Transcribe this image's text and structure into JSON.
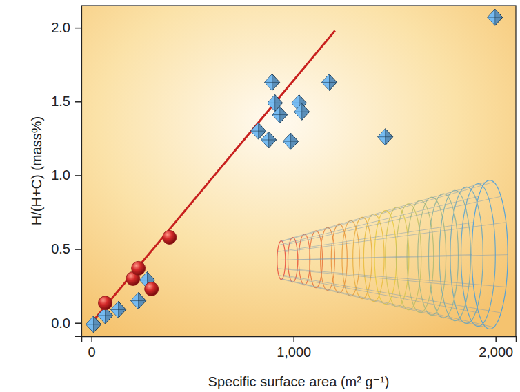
{
  "chart_data": {
    "type": "scatter",
    "x_label": "Specific surface area (m² g⁻¹)",
    "y_label": "H/(H+C) (mass%)",
    "xlim": [
      -50,
      2100
    ],
    "ylim": [
      -0.09,
      2.15
    ],
    "xticks": [
      0,
      {
        "value": 1000,
        "label": "1,000"
      },
      {
        "value": 2000,
        "label": "2,000"
      }
    ],
    "yticks": [
      {
        "value": 0,
        "label": "0.0"
      },
      0.5,
      {
        "value": 1,
        "label": "1.0"
      },
      1.5,
      {
        "value": 2,
        "label": "2.0"
      }
    ],
    "grid": false,
    "series": [
      {
        "type": "scatter",
        "marker": "diamond",
        "color": "#5b8fb9",
        "x": [
          10,
          68,
          133,
          232,
          276,
          826,
          877,
          894,
          908,
          932,
          986,
          1027,
          1041,
          1177,
          1454,
          1997
        ],
        "values": [
          -0.01,
          0.05,
          0.09,
          0.15,
          0.29,
          1.3,
          1.24,
          1.63,
          1.49,
          1.41,
          1.23,
          1.49,
          1.43,
          1.63,
          1.26,
          2.07
        ]
      },
      {
        "type": "scatter",
        "marker": "circle",
        "color": "#d42a2a",
        "x": [
          68,
          205,
          232,
          297,
          386
        ],
        "values": [
          0.135,
          0.3,
          0.37,
          0.23,
          0.58
        ]
      },
      {
        "type": "line",
        "line_style": "solid",
        "color": "#c8201e",
        "x": [
          0,
          1205
        ],
        "values": [
          0,
          1.98
        ]
      }
    ]
  }
}
